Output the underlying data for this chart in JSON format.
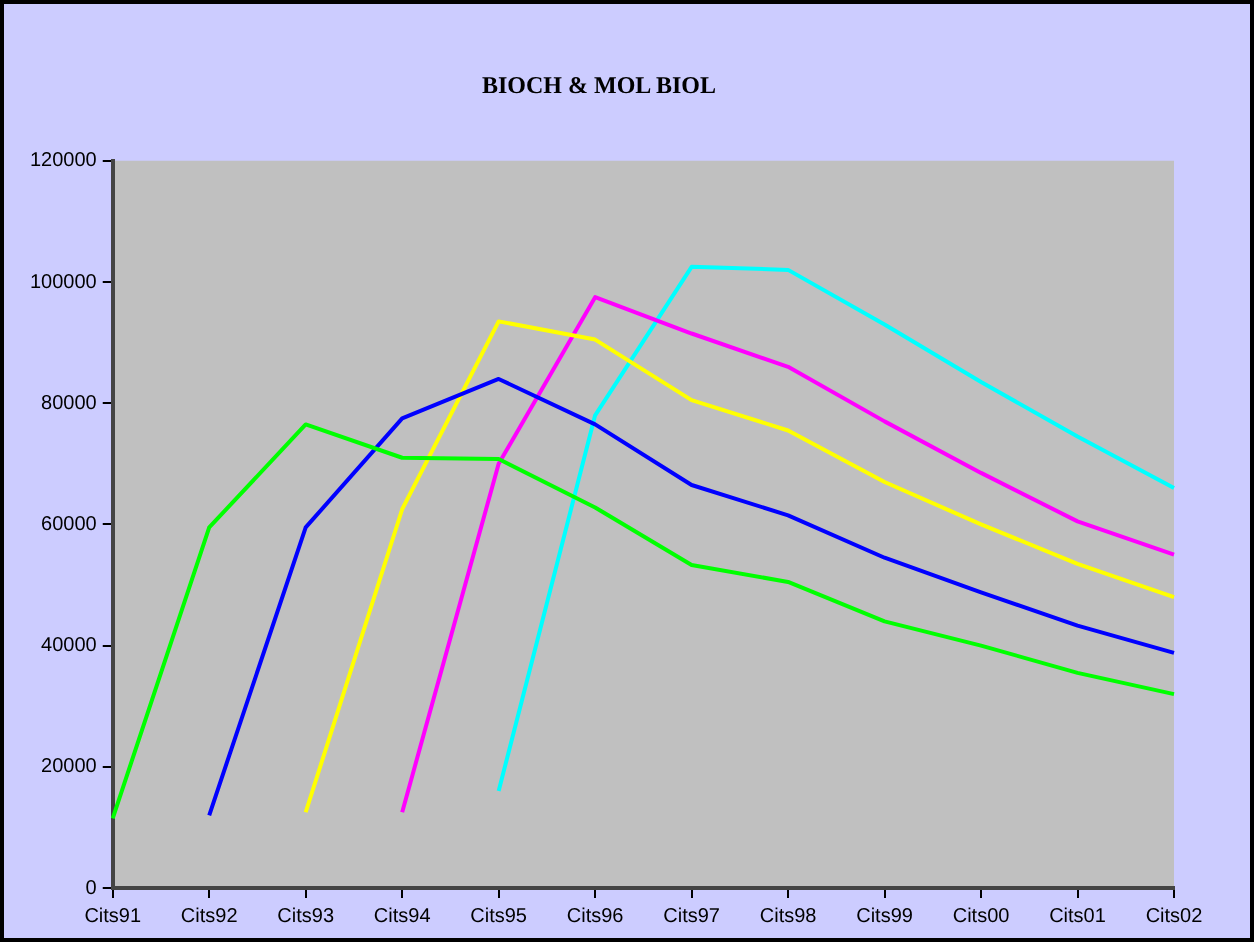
{
  "chart_data": {
    "type": "line",
    "title": "BIOCH & MOL BIOL",
    "categories": [
      "Cits91",
      "Cits92",
      "Cits93",
      "Cits94",
      "Cits95",
      "Cits96",
      "Cits97",
      "Cits98",
      "Cits99",
      "Cits00",
      "Cits01",
      "Cits02"
    ],
    "series": [
      {
        "color": "#00ff00",
        "values": [
          11500,
          59500,
          76500,
          71000,
          70800,
          62800,
          53300,
          50500,
          44000,
          40000,
          35500,
          32000
        ]
      },
      {
        "color": "#0000ff",
        "values": [
          null,
          12000,
          59500,
          77500,
          84000,
          76500,
          66500,
          61500,
          54500,
          48800,
          43300,
          38800
        ]
      },
      {
        "color": "#ffff00",
        "values": [
          null,
          null,
          12500,
          62500,
          93500,
          90500,
          80500,
          75500,
          67000,
          60000,
          53500,
          48000
        ]
      },
      {
        "color": "#ff00ff",
        "values": [
          null,
          null,
          null,
          12500,
          70000,
          97500,
          91500,
          86000,
          77000,
          68500,
          60500,
          55000
        ]
      },
      {
        "color": "#00ffff",
        "values": [
          null,
          null,
          null,
          null,
          16000,
          78000,
          102500,
          102000,
          93000,
          83500,
          74500,
          66000
        ]
      }
    ],
    "ylim": [
      0,
      120000
    ],
    "yticks": [
      0,
      20000,
      40000,
      60000,
      80000,
      100000,
      120000
    ],
    "grid": false,
    "legend": false,
    "marker": "none",
    "line_style": "solid"
  }
}
